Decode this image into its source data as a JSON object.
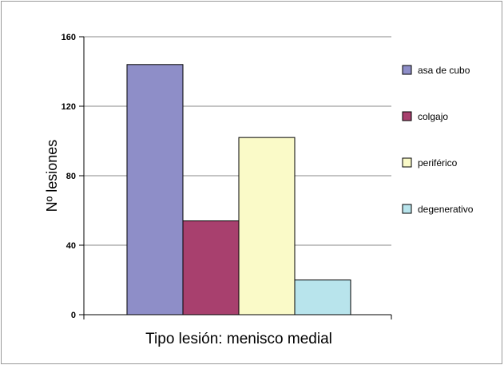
{
  "chart_data": {
    "type": "bar",
    "title": "",
    "xlabel": "Tipo lesión: menisco medial",
    "ylabel": "Nº lesiones",
    "ylim": [
      0,
      160
    ],
    "yticks": [
      "0",
      "40",
      "80",
      "120",
      "160"
    ],
    "grid": true,
    "legend_position": "right",
    "series": [
      {
        "name": "asa de cubo",
        "value": 144,
        "color": "#8e8ec8"
      },
      {
        "name": "colgajo",
        "value": 54,
        "color": "#a8406e"
      },
      {
        "name": "periférico",
        "value": 102,
        "color": "#fafac8"
      },
      {
        "name": "degenerativo",
        "value": 20,
        "color": "#b8e4ec"
      }
    ]
  }
}
